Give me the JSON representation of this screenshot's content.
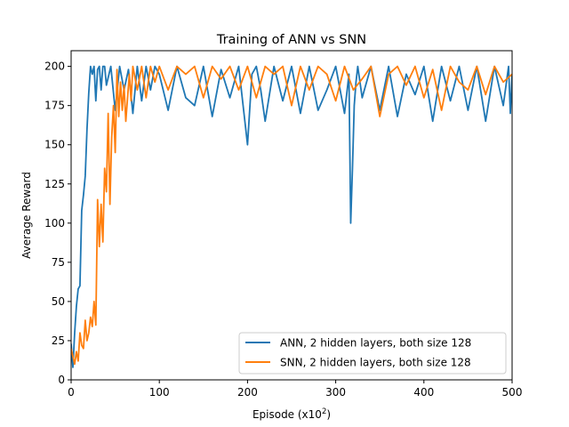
{
  "chart_data": {
    "type": "line",
    "title": "Training of ANN vs SNN",
    "xlabel": "Episode (x10",
    "xlabel_sup": "2",
    "xlabel_close": ")",
    "ylabel": "Average Reward",
    "xlim": [
      0,
      500
    ],
    "ylim": [
      0,
      210
    ],
    "xticks": [
      0,
      100,
      200,
      300,
      400,
      500
    ],
    "yticks": [
      0,
      25,
      50,
      75,
      100,
      125,
      150,
      175,
      200
    ],
    "grid": false,
    "legend_position": "lower-right",
    "series": [
      {
        "name": "ANN, 2 hidden layers, both size 128",
        "color": "#1f77b4",
        "x": [
          0,
          2,
          4,
          6,
          8,
          10,
          12,
          14,
          16,
          18,
          20,
          22,
          24,
          26,
          28,
          30,
          32,
          34,
          36,
          38,
          40,
          45,
          50,
          55,
          60,
          65,
          70,
          75,
          80,
          85,
          90,
          95,
          100,
          110,
          120,
          130,
          140,
          150,
          160,
          170,
          180,
          190,
          200,
          205,
          210,
          215,
          220,
          230,
          240,
          250,
          260,
          270,
          280,
          290,
          300,
          310,
          315,
          317,
          319,
          321,
          323,
          325,
          330,
          340,
          350,
          360,
          370,
          380,
          390,
          400,
          410,
          420,
          430,
          440,
          450,
          460,
          470,
          480,
          490,
          496,
          498,
          500
        ],
        "y": [
          23,
          8,
          30,
          47,
          58,
          60,
          108,
          118,
          130,
          160,
          183,
          200,
          195,
          200,
          178,
          198,
          200,
          185,
          200,
          200,
          188,
          200,
          172,
          200,
          185,
          198,
          170,
          200,
          178,
          200,
          185,
          200,
          195,
          172,
          200,
          180,
          175,
          200,
          168,
          198,
          180,
          200,
          150,
          195,
          200,
          185,
          165,
          200,
          178,
          200,
          170,
          200,
          172,
          185,
          200,
          170,
          195,
          100,
          135,
          175,
          190,
          200,
          180,
          200,
          172,
          200,
          168,
          195,
          182,
          200,
          165,
          200,
          178,
          200,
          172,
          200,
          165,
          200,
          175,
          200,
          170,
          195
        ]
      },
      {
        "name": "SNN, 2 hidden layers, both size 128",
        "color": "#ff7f0e",
        "x": [
          0,
          2,
          4,
          6,
          8,
          10,
          12,
          14,
          16,
          18,
          20,
          22,
          24,
          26,
          28,
          30,
          32,
          34,
          36,
          38,
          40,
          42,
          44,
          46,
          48,
          50,
          52,
          54,
          56,
          58,
          60,
          62,
          64,
          66,
          68,
          70,
          75,
          80,
          85,
          90,
          95,
          100,
          110,
          120,
          130,
          140,
          150,
          160,
          170,
          180,
          190,
          200,
          210,
          220,
          230,
          240,
          250,
          260,
          270,
          280,
          290,
          300,
          310,
          320,
          330,
          340,
          350,
          360,
          370,
          380,
          390,
          400,
          410,
          420,
          430,
          440,
          450,
          460,
          470,
          480,
          490,
          500
        ],
        "y": [
          20,
          15,
          10,
          18,
          12,
          30,
          22,
          20,
          38,
          25,
          30,
          40,
          34,
          50,
          35,
          115,
          85,
          112,
          88,
          135,
          120,
          170,
          112,
          155,
          175,
          145,
          198,
          168,
          190,
          172,
          188,
          165,
          180,
          195,
          178,
          200,
          185,
          200,
          180,
          200,
          190,
          200,
          185,
          200,
          195,
          200,
          180,
          200,
          192,
          200,
          185,
          200,
          180,
          200,
          195,
          200,
          175,
          200,
          185,
          200,
          195,
          178,
          200,
          185,
          192,
          200,
          168,
          195,
          200,
          188,
          200,
          180,
          198,
          172,
          200,
          190,
          185,
          200,
          182,
          200,
          190,
          195
        ]
      }
    ]
  }
}
